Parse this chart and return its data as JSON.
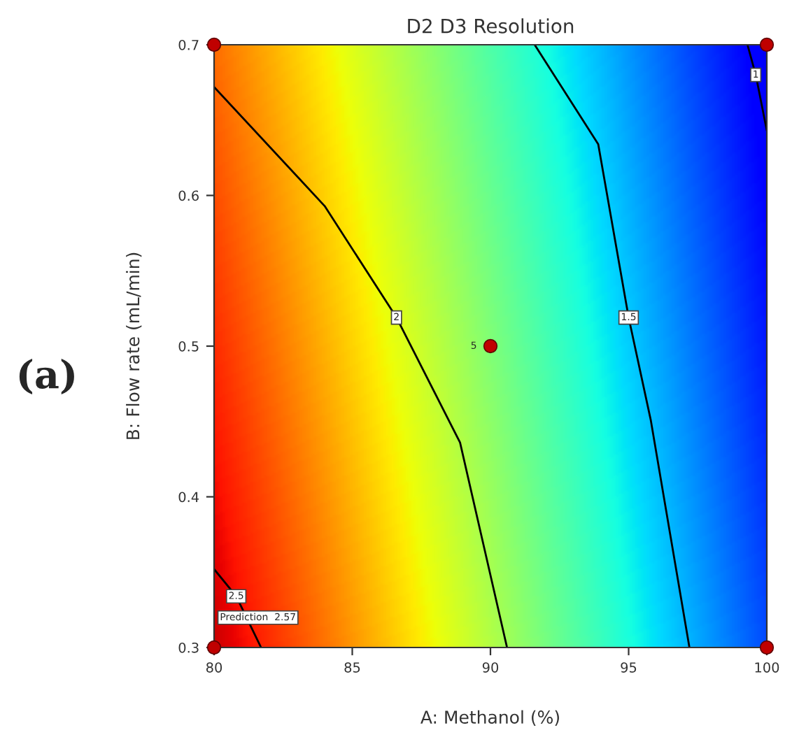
{
  "chart_data": {
    "type": "line",
    "title": "D2 D3 Resolution",
    "xlabel": "A: Methanol (%)",
    "ylabel": "B: Flow rate (mL/min)",
    "xlim": [
      80,
      100
    ],
    "ylim": [
      0.3,
      0.7
    ],
    "xticks": [
      80,
      85,
      90,
      95,
      100
    ],
    "yticks": [
      0.3,
      0.4,
      0.5,
      0.6,
      0.7
    ],
    "grid": false,
    "line_style": "solid",
    "series": [
      {
        "name": "2.5",
        "color": "#000000",
        "x": [
          80,
          80.8,
          81.7
        ],
        "values": [
          0.352,
          0.334,
          0.3
        ]
      },
      {
        "name": "2",
        "color": "#000000",
        "x": [
          80,
          84.0,
          86.6,
          88.9,
          90.6
        ],
        "values": [
          0.672,
          0.593,
          0.519,
          0.436,
          0.3
        ]
      },
      {
        "name": "1.5",
        "color": "#000000",
        "x": [
          91.6,
          93.9,
          95.0,
          95.8,
          97.2
        ],
        "values": [
          0.7,
          0.634,
          0.519,
          0.451,
          0.3
        ]
      },
      {
        "name": "1",
        "color": "#000000",
        "x": [
          99.3,
          99.6,
          100
        ],
        "values": [
          0.7,
          0.68,
          0.643
        ]
      },
      {
        "type": "scatter",
        "marker": "circle",
        "color": "#c00000",
        "x": [
          80,
          100,
          90,
          80,
          100
        ],
        "values": [
          0.7,
          0.7,
          0.5,
          0.3,
          0.3
        ]
      }
    ],
    "annotations": [
      {
        "text": "5",
        "x": 90,
        "y": 0.5
      },
      {
        "text": "Prediction  2.57",
        "x": 80,
        "y": 0.3
      },
      "(a)"
    ]
  }
}
